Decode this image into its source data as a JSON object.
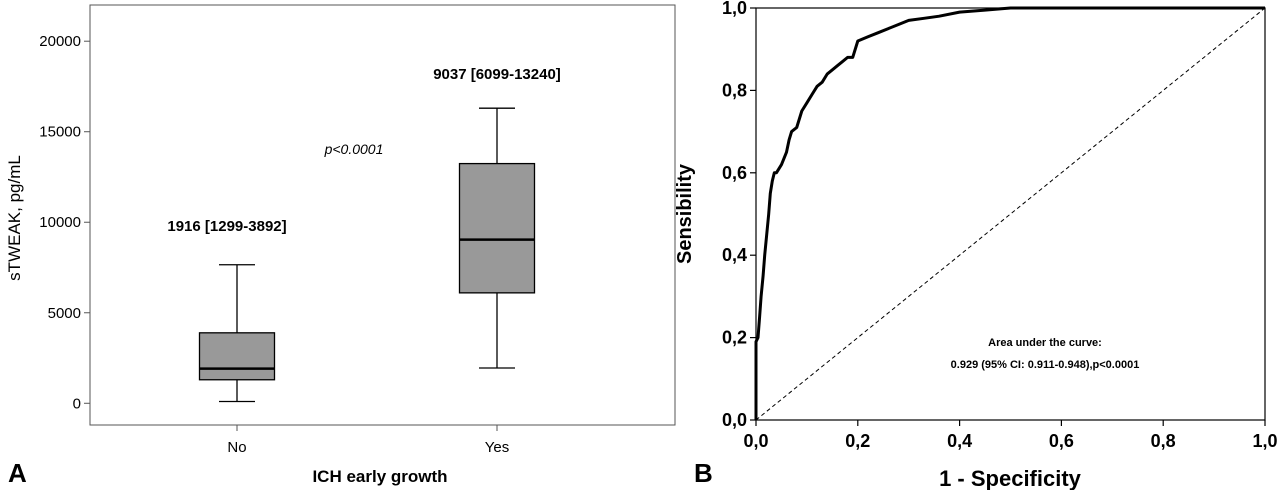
{
  "chart_data": [
    {
      "type": "box",
      "panel_label": "A",
      "xlabel": "ICH early growth",
      "ylabel": "sTWEAK, pg/mL",
      "ylim": [
        -1200,
        22000
      ],
      "yticks": [
        0,
        5000,
        10000,
        15000,
        20000
      ],
      "categories": [
        "No",
        "Yes"
      ],
      "boxes": [
        {
          "category": "No",
          "min": 100,
          "q1": 1299,
          "median": 1916,
          "q3": 3892,
          "max": 7650,
          "label": "1916 [1299-3892]"
        },
        {
          "category": "Yes",
          "min": 1950,
          "q1": 6099,
          "median": 9037,
          "q3": 13240,
          "max": 16300,
          "label": "9037 [6099-13240]"
        }
      ],
      "annotation": "p<0.0001",
      "box_fill": "#999999",
      "grid": false
    },
    {
      "type": "line",
      "panel_label": "B",
      "xlabel": "1 - Specificity",
      "ylabel": "Sensibility",
      "xlim": [
        0,
        1
      ],
      "ylim": [
        0,
        1
      ],
      "xticks": [
        "0,0",
        "0,2",
        "0,4",
        "0,6",
        "0,8",
        "1,0"
      ],
      "yticks": [
        "0,0",
        "0,2",
        "0,4",
        "0,6",
        "0,8",
        "1,0"
      ],
      "series": [
        {
          "style": "solid",
          "x": [
            0,
            0,
            0.004,
            0.007,
            0.01,
            0.014,
            0.017,
            0.021,
            0.025,
            0.028,
            0.032,
            0.036,
            0.04,
            0.05,
            0.06,
            0.065,
            0.07,
            0.08,
            0.09,
            0.1,
            0.11,
            0.12,
            0.13,
            0.14,
            0.15,
            0.16,
            0.17,
            0.18,
            0.19,
            0.2,
            0.22,
            0.24,
            0.26,
            0.28,
            0.3,
            0.33,
            0.36,
            0.4,
            0.45,
            0.5,
            0.6,
            0.7,
            0.8,
            0.9,
            1.0
          ],
          "y": [
            0,
            0.19,
            0.2,
            0.25,
            0.3,
            0.35,
            0.4,
            0.45,
            0.5,
            0.55,
            0.58,
            0.6,
            0.6,
            0.62,
            0.65,
            0.68,
            0.7,
            0.71,
            0.75,
            0.77,
            0.79,
            0.81,
            0.82,
            0.84,
            0.85,
            0.86,
            0.87,
            0.88,
            0.88,
            0.92,
            0.93,
            0.94,
            0.95,
            0.96,
            0.97,
            0.975,
            0.98,
            0.99,
            0.995,
            1.0,
            1.0,
            1.0,
            1.0,
            1.0,
            1.0
          ]
        },
        {
          "style": "dashed",
          "x": [
            0,
            1
          ],
          "y": [
            0,
            1
          ]
        }
      ],
      "annotation_title": "Area under the curve:",
      "annotation_text": "0.929  (95% CI:  0.911-0.948),p<0.0001",
      "grid": false
    }
  ]
}
